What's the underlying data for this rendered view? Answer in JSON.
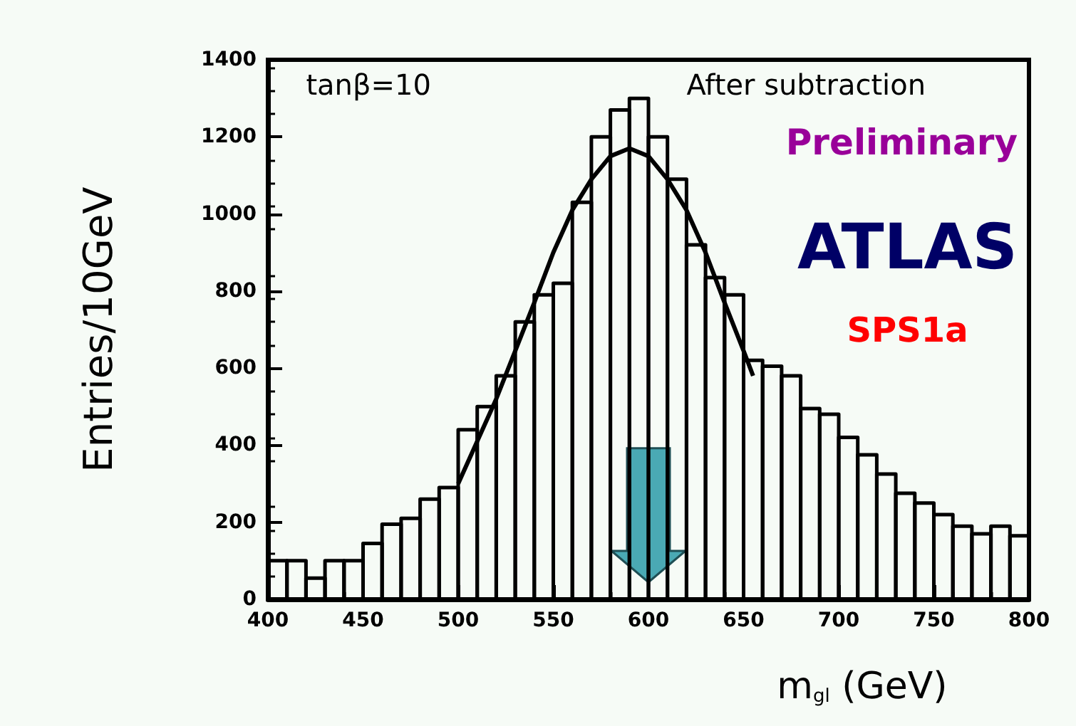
{
  "chart_data": {
    "type": "histogram",
    "xlabel": "m$_{gl}$ (GeV)",
    "ylabel": "Entries/10GeV",
    "annotations": [
      "tanβ=10",
      "After subtraction",
      "Preliminary",
      "ATLAS",
      "SPS1a"
    ],
    "bins": [
      400,
      410,
      420,
      430,
      440,
      450,
      460,
      470,
      480,
      490,
      500,
      510,
      520,
      530,
      540,
      550,
      560,
      570,
      580,
      590,
      600,
      610,
      620,
      630,
      640,
      650,
      660,
      670,
      680,
      690,
      700,
      710,
      720,
      730,
      740,
      750,
      760,
      770,
      780,
      790,
      800
    ],
    "values": [
      100,
      100,
      55,
      100,
      100,
      145,
      195,
      210,
      260,
      290,
      440,
      500,
      580,
      720,
      790,
      820,
      1030,
      1200,
      1270,
      1300,
      1200,
      1090,
      920,
      835,
      790,
      620,
      605,
      580,
      495,
      480,
      420,
      375,
      325,
      275,
      250,
      220,
      190,
      170,
      190,
      165
    ],
    "color": "#000000",
    "series": [
      {
        "type": "line",
        "color": "#000000",
        "x": [
          500,
          510,
          520,
          530,
          540,
          550,
          560,
          570,
          580,
          590,
          600,
          610,
          620,
          630,
          640,
          650,
          655
        ],
        "values": [
          300,
          410,
          520,
          645,
          770,
          900,
          1010,
          1090,
          1150,
          1170,
          1150,
          1090,
          1010,
          900,
          770,
          645,
          580
        ]
      }
    ],
    "xlim": [
      400,
      800
    ],
    "xticks": [
      400,
      450,
      500,
      550,
      600,
      650,
      700,
      750,
      800
    ],
    "ylim": [
      0,
      1400
    ],
    "yticks": [
      0,
      200,
      400,
      600,
      800,
      1000,
      1200,
      1400
    ],
    "grid": false,
    "legend": false,
    "marker": "none",
    "line_style": "solid"
  }
}
